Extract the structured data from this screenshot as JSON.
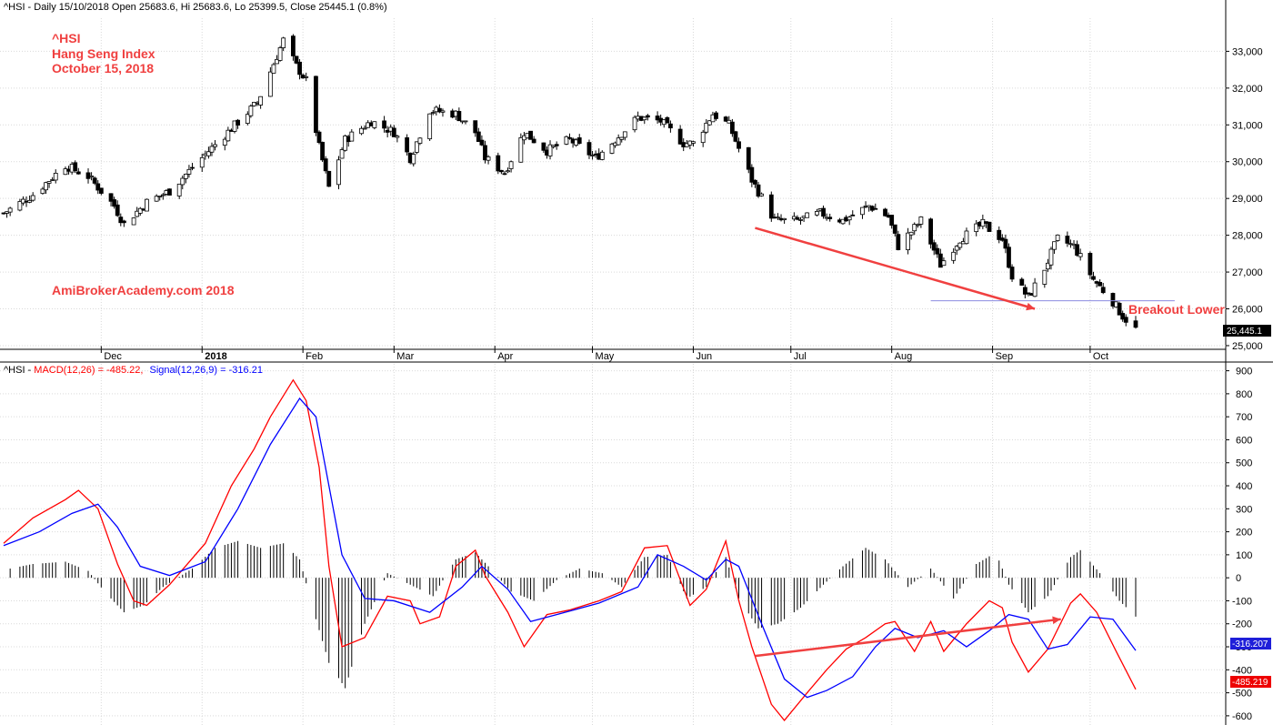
{
  "colors": {
    "annotation": "#f04040",
    "macd_line": "#ff0000",
    "signal_line": "#0000ff",
    "candle": "#000000",
    "grid": "#d9d9d9",
    "support_line": "#8c8ce0"
  },
  "chart_data": [
    {
      "type": "candlestick",
      "header": "^HSI - Daily 15/10/2018 Open 25683.6, Hi 25683.6, Lo 25399.5, Close 25445.1 (0.8%)",
      "annotations": {
        "symbol": "^HSI",
        "name": "Hang Seng Index",
        "date": "October 15, 2018",
        "watermark": "AmiBrokerAcademy.com  2018",
        "breakout": "Breakout Lower"
      },
      "x_ticks": [
        "Dec",
        "2018",
        "Feb",
        "Mar",
        "Apr",
        "May",
        "Jun",
        "Jul",
        "Aug",
        "Sep",
        "Oct"
      ],
      "y_ticks": [
        "25,000",
        "26,000",
        "27,000",
        "28,000",
        "29,000",
        "30,000",
        "31,000",
        "32,000",
        "33,000"
      ],
      "ylim": [
        24900,
        33900
      ],
      "last_close_label": "25,445.1",
      "last_close": 25445.1,
      "support_level": 26220,
      "trend_arrow": {
        "from": {
          "date": "2018-06-20",
          "value": 28200
        },
        "to": {
          "date": "2018-09-14",
          "value": 26000
        }
      },
      "closes_anchor": [
        [
          "2017-11-01",
          28600
        ],
        [
          "2017-11-10",
          29100
        ],
        [
          "2017-11-20",
          29900
        ],
        [
          "2017-11-27",
          29600
        ],
        [
          "2017-12-05",
          28800
        ],
        [
          "2017-12-08",
          28300
        ],
        [
          "2017-12-15",
          28900
        ],
        [
          "2017-12-22",
          29200
        ],
        [
          "2018-01-02",
          30200
        ],
        [
          "2018-01-10",
          30900
        ],
        [
          "2018-01-18",
          31600
        ],
        [
          "2018-01-26",
          33300
        ],
        [
          "2018-01-30",
          32600
        ],
        [
          "2018-02-02",
          32200
        ],
        [
          "2018-02-06",
          30400
        ],
        [
          "2018-02-09",
          29300
        ],
        [
          "2018-02-14",
          30600
        ],
        [
          "2018-02-22",
          31100
        ],
        [
          "2018-03-01",
          30800
        ],
        [
          "2018-03-06",
          30100
        ],
        [
          "2018-03-12",
          31400
        ],
        [
          "2018-03-20",
          31300
        ],
        [
          "2018-03-26",
          30800
        ],
        [
          "2018-03-29",
          30100
        ],
        [
          "2018-04-04",
          29700
        ],
        [
          "2018-04-10",
          30800
        ],
        [
          "2018-04-17",
          30300
        ],
        [
          "2018-04-24",
          30600
        ],
        [
          "2018-05-02",
          30100
        ],
        [
          "2018-05-08",
          30600
        ],
        [
          "2018-05-15",
          31200
        ],
        [
          "2018-05-22",
          31100
        ],
        [
          "2018-05-29",
          30500
        ],
        [
          "2018-06-01",
          30500
        ],
        [
          "2018-06-07",
          31300
        ],
        [
          "2018-06-12",
          31000
        ],
        [
          "2018-06-19",
          29500
        ],
        [
          "2018-06-26",
          28400
        ],
        [
          "2018-07-03",
          28400
        ],
        [
          "2018-07-10",
          28600
        ],
        [
          "2018-07-17",
          28400
        ],
        [
          "2018-07-25",
          28800
        ],
        [
          "2018-07-31",
          28500
        ],
        [
          "2018-08-03",
          27700
        ],
        [
          "2018-08-10",
          28400
        ],
        [
          "2018-08-16",
          27200
        ],
        [
          "2018-08-22",
          27900
        ],
        [
          "2018-08-29",
          28300
        ],
        [
          "2018-09-04",
          27900
        ],
        [
          "2018-09-07",
          26900
        ],
        [
          "2018-09-12",
          26300
        ],
        [
          "2018-09-17",
          27100
        ],
        [
          "2018-09-21",
          27900
        ],
        [
          "2018-09-26",
          27700
        ],
        [
          "2018-10-02",
          26800
        ],
        [
          "2018-10-08",
          26200
        ],
        [
          "2018-10-11",
          25800
        ],
        [
          "2018-10-15",
          25445
        ]
      ]
    },
    {
      "type": "line",
      "header_prefix": "^HSI - ",
      "macd_label": "MACD(12,26) = -485.22,",
      "signal_label": "Signal(12,26,9) = -316.21",
      "y_ticks": [
        "-600",
        "-500",
        "-400",
        "-300",
        "-200",
        "-100",
        "0",
        "100",
        "200",
        "300",
        "400",
        "500",
        "600",
        "700",
        "800",
        "900"
      ],
      "ylim": [
        -640,
        930
      ],
      "value_tags": {
        "signal": "-316.207",
        "macd": "-485.219"
      },
      "series": [
        {
          "name": "MACD(12,26)",
          "points": [
            [
              "2017-11-01",
              150
            ],
            [
              "2017-11-10",
              260
            ],
            [
              "2017-11-20",
              340
            ],
            [
              "2017-11-24",
              380
            ],
            [
              "2017-11-30",
              300
            ],
            [
              "2017-12-06",
              60
            ],
            [
              "2017-12-11",
              -100
            ],
            [
              "2017-12-15",
              -120
            ],
            [
              "2017-12-22",
              -30
            ],
            [
              "2018-01-02",
              150
            ],
            [
              "2018-01-10",
              400
            ],
            [
              "2018-01-17",
              560
            ],
            [
              "2018-01-22",
              700
            ],
            [
              "2018-01-29",
              860
            ],
            [
              "2018-02-02",
              770
            ],
            [
              "2018-02-06",
              480
            ],
            [
              "2018-02-09",
              50
            ],
            [
              "2018-02-13",
              -300
            ],
            [
              "2018-02-20",
              -260
            ],
            [
              "2018-02-27",
              -80
            ],
            [
              "2018-03-06",
              -100
            ],
            [
              "2018-03-09",
              -200
            ],
            [
              "2018-03-15",
              -170
            ],
            [
              "2018-03-20",
              50
            ],
            [
              "2018-03-26",
              120
            ],
            [
              "2018-03-29",
              10
            ],
            [
              "2018-04-05",
              -150
            ],
            [
              "2018-04-10",
              -300
            ],
            [
              "2018-04-17",
              -160
            ],
            [
              "2018-04-24",
              -140
            ],
            [
              "2018-05-03",
              -100
            ],
            [
              "2018-05-10",
              -60
            ],
            [
              "2018-05-17",
              130
            ],
            [
              "2018-05-24",
              140
            ],
            [
              "2018-05-31",
              -120
            ],
            [
              "2018-06-05",
              -50
            ],
            [
              "2018-06-11",
              160
            ],
            [
              "2018-06-15",
              -100
            ],
            [
              "2018-06-19",
              -300
            ],
            [
              "2018-06-25",
              -550
            ],
            [
              "2018-06-29",
              -620
            ],
            [
              "2018-07-06",
              -500
            ],
            [
              "2018-07-12",
              -400
            ],
            [
              "2018-07-18",
              -310
            ],
            [
              "2018-07-24",
              -260
            ],
            [
              "2018-07-30",
              -200
            ],
            [
              "2018-08-02",
              -190
            ],
            [
              "2018-08-08",
              -320
            ],
            [
              "2018-08-13",
              -190
            ],
            [
              "2018-08-17",
              -320
            ],
            [
              "2018-08-24",
              -200
            ],
            [
              "2018-08-31",
              -100
            ],
            [
              "2018-09-04",
              -130
            ],
            [
              "2018-09-07",
              -280
            ],
            [
              "2018-09-12",
              -410
            ],
            [
              "2018-09-18",
              -310
            ],
            [
              "2018-09-25",
              -110
            ],
            [
              "2018-09-28",
              -70
            ],
            [
              "2018-10-03",
              -150
            ],
            [
              "2018-10-09",
              -320
            ],
            [
              "2018-10-15",
              -485
            ]
          ]
        },
        {
          "name": "Signal(12,26,9)",
          "points": [
            [
              "2017-11-01",
              140
            ],
            [
              "2017-11-12",
              200
            ],
            [
              "2017-11-22",
              280
            ],
            [
              "2017-11-30",
              320
            ],
            [
              "2017-12-06",
              220
            ],
            [
              "2017-12-13",
              50
            ],
            [
              "2017-12-22",
              10
            ],
            [
              "2018-01-02",
              70
            ],
            [
              "2018-01-12",
              300
            ],
            [
              "2018-01-22",
              580
            ],
            [
              "2018-01-31",
              780
            ],
            [
              "2018-02-05",
              700
            ],
            [
              "2018-02-13",
              100
            ],
            [
              "2018-02-20",
              -90
            ],
            [
              "2018-03-01",
              -100
            ],
            [
              "2018-03-12",
              -150
            ],
            [
              "2018-03-22",
              -40
            ],
            [
              "2018-03-28",
              50
            ],
            [
              "2018-04-05",
              -50
            ],
            [
              "2018-04-12",
              -190
            ],
            [
              "2018-04-20",
              -160
            ],
            [
              "2018-05-03",
              -110
            ],
            [
              "2018-05-15",
              -40
            ],
            [
              "2018-05-21",
              100
            ],
            [
              "2018-05-29",
              50
            ],
            [
              "2018-06-05",
              -10
            ],
            [
              "2018-06-11",
              80
            ],
            [
              "2018-06-15",
              50
            ],
            [
              "2018-06-22",
              -200
            ],
            [
              "2018-06-29",
              -440
            ],
            [
              "2018-07-06",
              -520
            ],
            [
              "2018-07-12",
              -490
            ],
            [
              "2018-07-20",
              -430
            ],
            [
              "2018-07-27",
              -300
            ],
            [
              "2018-08-02",
              -220
            ],
            [
              "2018-08-09",
              -260
            ],
            [
              "2018-08-17",
              -230
            ],
            [
              "2018-08-24",
              -300
            ],
            [
              "2018-08-31",
              -230
            ],
            [
              "2018-09-06",
              -160
            ],
            [
              "2018-09-12",
              -180
            ],
            [
              "2018-09-18",
              -310
            ],
            [
              "2018-09-24",
              -290
            ],
            [
              "2018-10-01",
              -170
            ],
            [
              "2018-10-08",
              -180
            ],
            [
              "2018-10-15",
              -316
            ]
          ]
        }
      ],
      "histogram": [
        [
          "2017-11-03",
          40
        ],
        [
          "2017-11-10",
          60
        ],
        [
          "2017-11-20",
          70
        ],
        [
          "2017-11-27",
          30
        ],
        [
          "2017-12-02",
          -60
        ],
        [
          "2017-12-08",
          -150
        ],
        [
          "2017-12-14",
          -120
        ],
        [
          "2017-12-20",
          -40
        ],
        [
          "2017-12-29",
          40
        ],
        [
          "2018-01-05",
          130
        ],
        [
          "2018-01-12",
          160
        ],
        [
          "2018-01-19",
          130
        ],
        [
          "2018-01-26",
          150
        ],
        [
          "2018-01-31",
          80
        ],
        [
          "2018-02-05",
          -180
        ],
        [
          "2018-02-09",
          -370
        ],
        [
          "2018-02-14",
          -480
        ],
        [
          "2018-02-20",
          -200
        ],
        [
          "2018-02-27",
          20
        ],
        [
          "2018-03-06",
          -30
        ],
        [
          "2018-03-13",
          -80
        ],
        [
          "2018-03-20",
          80
        ],
        [
          "2018-03-26",
          110
        ],
        [
          "2018-03-30",
          50
        ],
        [
          "2018-04-06",
          -60
        ],
        [
          "2018-04-13",
          -100
        ],
        [
          "2018-04-20",
          -10
        ],
        [
          "2018-04-27",
          40
        ],
        [
          "2018-05-04",
          20
        ],
        [
          "2018-05-10",
          -40
        ],
        [
          "2018-05-17",
          90
        ],
        [
          "2018-05-24",
          100
        ],
        [
          "2018-05-30",
          -90
        ],
        [
          "2018-06-05",
          -40
        ],
        [
          "2018-06-11",
          90
        ],
        [
          "2018-06-15",
          -90
        ],
        [
          "2018-06-21",
          -220
        ],
        [
          "2018-06-27",
          -200
        ],
        [
          "2018-07-04",
          -130
        ],
        [
          "2018-07-11",
          -30
        ],
        [
          "2018-07-17",
          50
        ],
        [
          "2018-07-24",
          130
        ],
        [
          "2018-07-30",
          80
        ],
        [
          "2018-08-06",
          -40
        ],
        [
          "2018-08-13",
          40
        ],
        [
          "2018-08-20",
          -90
        ],
        [
          "2018-08-27",
          60
        ],
        [
          "2018-09-02",
          110
        ],
        [
          "2018-09-06",
          -30
        ],
        [
          "2018-09-12",
          -150
        ],
        [
          "2018-09-18",
          -80
        ],
        [
          "2018-09-25",
          90
        ],
        [
          "2018-09-28",
          120
        ],
        [
          "2018-10-04",
          20
        ],
        [
          "2018-10-10",
          -100
        ],
        [
          "2018-10-15",
          -169
        ]
      ],
      "trend_arrow": {
        "from": {
          "date": "2018-06-20",
          "value": -340
        },
        "to": {
          "date": "2018-09-22",
          "value": -180
        }
      }
    }
  ]
}
